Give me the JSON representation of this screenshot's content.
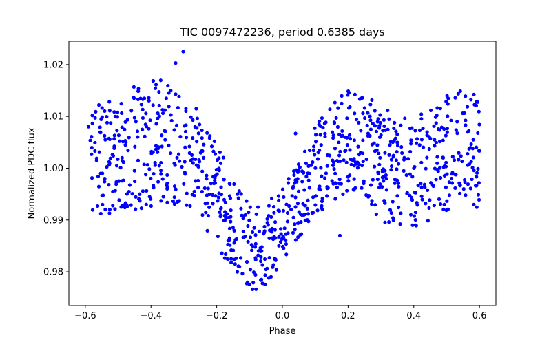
{
  "chart_data": {
    "type": "scatter",
    "title": "TIC 0097472236, period 0.6385 days",
    "xlabel": "Phase",
    "ylabel": "Normalized PDC flux",
    "xlim": [
      -0.65,
      0.65
    ],
    "ylim": [
      0.9735,
      1.0245
    ],
    "xticks": [
      -0.6,
      -0.4,
      -0.2,
      0.0,
      0.2,
      0.4,
      0.6
    ],
    "xtick_labels": [
      "−0.6",
      "−0.4",
      "−0.2",
      "0.0",
      "0.2",
      "0.4",
      "0.6"
    ],
    "yticks": [
      0.98,
      0.99,
      1.0,
      1.01,
      1.02
    ],
    "ytick_labels": [
      "0.98",
      "0.99",
      "1.00",
      "1.01",
      "1.02"
    ],
    "grid": false,
    "marker_color": "#0000ff",
    "series": [
      {
        "phase_min": -0.6,
        "phase_max": 0.6,
        "point_count": 1000,
        "trend": {
          "phase": [
            -0.6,
            -0.55,
            -0.5,
            -0.45,
            -0.4,
            -0.35,
            -0.3,
            -0.25,
            -0.2,
            -0.15,
            -0.1,
            -0.05,
            0.0,
            0.05,
            0.1,
            0.15,
            0.2,
            0.25,
            0.3,
            0.35,
            0.4,
            0.45,
            0.5,
            0.55,
            0.6
          ],
          "flux": [
            1.001,
            1.0015,
            1.003,
            1.004,
            1.005,
            1.005,
            1.004,
            1.0005,
            0.995,
            0.989,
            0.985,
            0.985,
            0.989,
            0.994,
            0.9995,
            1.003,
            1.005,
            1.004,
            1.001,
            0.999,
            0.999,
            1.001,
            1.003,
            1.004,
            1.003
          ]
        },
        "scatter_halfwidth": {
          "phase": [
            -0.6,
            -0.4,
            -0.25,
            -0.1,
            0.05,
            0.15,
            0.3,
            0.45,
            0.6
          ],
          "flux": [
            0.0105,
            0.0125,
            0.0105,
            0.0085,
            0.0075,
            0.0095,
            0.011,
            0.011,
            0.0115
          ]
        }
      }
    ],
    "outliers": [
      {
        "x": -0.302,
        "y": 1.0225
      },
      {
        "x": -0.325,
        "y": 1.0203
      },
      {
        "x": 0.175,
        "y": 0.987
      },
      {
        "x": 0.04,
        "y": 1.0067
      }
    ]
  }
}
